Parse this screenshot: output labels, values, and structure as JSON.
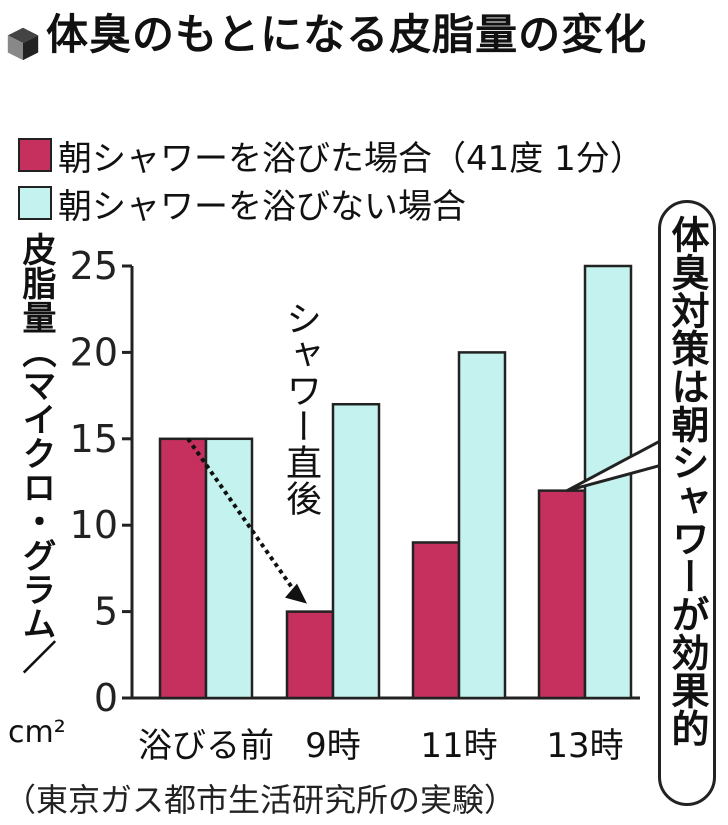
{
  "colors": {
    "with_shower": "#c5305e",
    "without_shower": "#c4f2ee",
    "axis": "#222222"
  },
  "header": {
    "icon": "cube-icon",
    "title": "体臭のもとになる皮脂量の変化"
  },
  "legend": [
    {
      "label": "朝シャワーを浴びた場合（41度 1分）",
      "color": "#c5305e"
    },
    {
      "label": "朝シャワーを浴びない場合",
      "color": "#c4f2ee"
    }
  ],
  "axis": {
    "ylabel": "皮脂量（マイクロ・グラム／",
    "unit": "cm²"
  },
  "annotation": "シャワー直後",
  "callout": "体臭対策は朝シャワーが効果的",
  "source": "（東京ガス都市生活研究所の実験）",
  "chart_data": {
    "type": "bar",
    "categories": [
      "浴びる前",
      "9時",
      "11時",
      "13時"
    ],
    "series": [
      {
        "name": "朝シャワーを浴びた場合（41度 1分）",
        "values": [
          15,
          5,
          9,
          12
        ]
      },
      {
        "name": "朝シャワーを浴びない場合",
        "values": [
          15,
          17,
          20,
          25
        ]
      }
    ],
    "title": "体臭のもとになる皮脂量の変化",
    "ylabel": "皮脂量（マイクロ・グラム／cm²）",
    "ylim": [
      0,
      25
    ],
    "yticks": [
      0,
      5,
      10,
      15,
      20,
      25
    ],
    "grid": false,
    "legend_position": "top-left"
  }
}
